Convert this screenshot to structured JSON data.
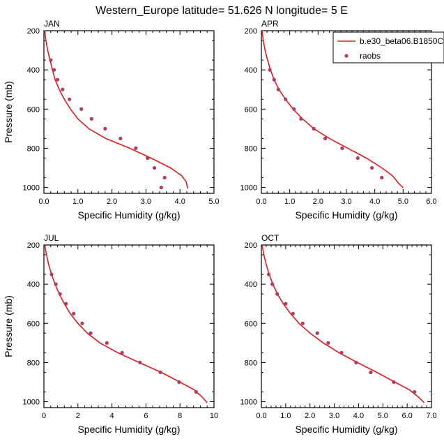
{
  "figure": {
    "title": "Western_Europe  latitude= 51.626 N longitude= 5 E"
  },
  "colors": {
    "model_line": "#e31a1c",
    "obs_marker": "#b03a64",
    "axis": "#000000"
  },
  "legend": {
    "model_label": "b.e30_beta06.B1850C",
    "obs_label": "raobs"
  },
  "chart_data": [
    {
      "type": "line",
      "title": "JAN",
      "xlabel": "Specific Humidity (g/kg)",
      "ylabel": "Pressure (mb)",
      "xlim": [
        0,
        5
      ],
      "xticks": [
        "0.0",
        "1.0",
        "2.0",
        "3.0",
        "4.0",
        "5.0"
      ],
      "ylim": [
        200,
        1030
      ],
      "yticks": [
        "200",
        "400",
        "600",
        "800",
        "1000"
      ],
      "y_reversed": true,
      "series": [
        {
          "name": "b.e30_beta06.B1850C",
          "style": "line",
          "points": [
            [
              0.02,
              200
            ],
            [
              0.06,
              250
            ],
            [
              0.11,
              300
            ],
            [
              0.18,
              350
            ],
            [
              0.25,
              400
            ],
            [
              0.33,
              450
            ],
            [
              0.45,
              500
            ],
            [
              0.6,
              550
            ],
            [
              0.78,
              600
            ],
            [
              1.0,
              650
            ],
            [
              1.32,
              700
            ],
            [
              1.82,
              750
            ],
            [
              2.52,
              800
            ],
            [
              3.15,
              850
            ],
            [
              3.72,
              900
            ],
            [
              4.05,
              940
            ],
            [
              4.18,
              970
            ],
            [
              4.23,
              1005
            ]
          ]
        },
        {
          "name": "raobs",
          "style": "markers",
          "points": [
            [
              0.2,
              350
            ],
            [
              0.3,
              400
            ],
            [
              0.4,
              450
            ],
            [
              0.55,
              500
            ],
            [
              0.75,
              550
            ],
            [
              1.1,
              600
            ],
            [
              1.4,
              650
            ],
            [
              1.8,
              700
            ],
            [
              2.25,
              750
            ],
            [
              2.7,
              800
            ],
            [
              3.05,
              850
            ],
            [
              3.25,
              900
            ],
            [
              3.55,
              950
            ],
            [
              3.45,
              1000
            ]
          ]
        }
      ]
    },
    {
      "type": "line",
      "title": "APR",
      "xlabel": "Specific Humidity (g/kg)",
      "ylabel": "",
      "xlim": [
        0,
        6
      ],
      "xticks": [
        "0.0",
        "1.0",
        "2.0",
        "3.0",
        "4.0",
        "5.0",
        "6.0"
      ],
      "ylim": [
        200,
        1030
      ],
      "yticks": [
        "200",
        "400",
        "600",
        "800",
        "1000"
      ],
      "y_reversed": true,
      "series": [
        {
          "name": "b.e30_beta06.B1850C",
          "style": "line",
          "points": [
            [
              0.02,
              200
            ],
            [
              0.07,
              250
            ],
            [
              0.13,
              300
            ],
            [
              0.22,
              350
            ],
            [
              0.32,
              400
            ],
            [
              0.45,
              450
            ],
            [
              0.62,
              500
            ],
            [
              0.85,
              550
            ],
            [
              1.12,
              600
            ],
            [
              1.45,
              650
            ],
            [
              1.85,
              700
            ],
            [
              2.4,
              750
            ],
            [
              3.05,
              800
            ],
            [
              3.7,
              850
            ],
            [
              4.25,
              900
            ],
            [
              4.62,
              940
            ],
            [
              4.85,
              980
            ],
            [
              5.0,
              1002
            ]
          ]
        },
        {
          "name": "raobs",
          "style": "markers",
          "points": [
            [
              0.3,
              400
            ],
            [
              0.45,
              450
            ],
            [
              0.6,
              500
            ],
            [
              0.85,
              550
            ],
            [
              1.15,
              600
            ],
            [
              1.4,
              650
            ],
            [
              1.85,
              700
            ],
            [
              2.25,
              750
            ],
            [
              2.85,
              800
            ],
            [
              3.4,
              850
            ],
            [
              3.9,
              900
            ],
            [
              4.25,
              950
            ]
          ]
        }
      ]
    },
    {
      "type": "line",
      "title": "JUL",
      "xlabel": "Specific Humidity (g/kg)",
      "ylabel": "Pressure (mb)",
      "xlim": [
        0,
        10
      ],
      "xticks": [
        "0",
        "2",
        "4",
        "6",
        "8",
        "10"
      ],
      "ylim": [
        200,
        1030
      ],
      "yticks": [
        "200",
        "400",
        "600",
        "800",
        "1000"
      ],
      "y_reversed": true,
      "series": [
        {
          "name": "b.e30_beta06.B1850C",
          "style": "line",
          "points": [
            [
              0.05,
              200
            ],
            [
              0.15,
              250
            ],
            [
              0.28,
              300
            ],
            [
              0.45,
              350
            ],
            [
              0.65,
              400
            ],
            [
              0.9,
              450
            ],
            [
              1.2,
              500
            ],
            [
              1.55,
              550
            ],
            [
              2.0,
              600
            ],
            [
              2.55,
              650
            ],
            [
              3.3,
              700
            ],
            [
              4.35,
              750
            ],
            [
              5.6,
              800
            ],
            [
              6.9,
              850
            ],
            [
              8.0,
              900
            ],
            [
              8.85,
              940
            ],
            [
              9.35,
              980
            ],
            [
              9.6,
              1005
            ]
          ]
        },
        {
          "name": "raobs",
          "style": "markers",
          "points": [
            [
              0.45,
              350
            ],
            [
              0.7,
              400
            ],
            [
              0.95,
              450
            ],
            [
              1.3,
              500
            ],
            [
              1.75,
              550
            ],
            [
              2.25,
              600
            ],
            [
              2.75,
              650
            ],
            [
              3.7,
              700
            ],
            [
              4.6,
              750
            ],
            [
              5.65,
              800
            ],
            [
              6.85,
              850
            ],
            [
              7.95,
              900
            ],
            [
              8.95,
              950
            ]
          ]
        }
      ]
    },
    {
      "type": "line",
      "title": "OCT",
      "xlabel": "Specific Humidity (g/kg)",
      "ylabel": "",
      "xlim": [
        0,
        7
      ],
      "xticks": [
        "0.0",
        "1.0",
        "2.0",
        "3.0",
        "4.0",
        "5.0",
        "6.0",
        "7.0"
      ],
      "ylim": [
        200,
        1030
      ],
      "yticks": [
        "200",
        "400",
        "600",
        "800",
        "1000"
      ],
      "y_reversed": true,
      "series": [
        {
          "name": "b.e30_beta06.B1850C",
          "style": "line",
          "points": [
            [
              0.03,
              200
            ],
            [
              0.1,
              250
            ],
            [
              0.2,
              300
            ],
            [
              0.32,
              350
            ],
            [
              0.47,
              400
            ],
            [
              0.66,
              450
            ],
            [
              0.9,
              500
            ],
            [
              1.2,
              550
            ],
            [
              1.55,
              600
            ],
            [
              2.0,
              650
            ],
            [
              2.55,
              700
            ],
            [
              3.2,
              750
            ],
            [
              3.95,
              800
            ],
            [
              4.75,
              850
            ],
            [
              5.5,
              900
            ],
            [
              6.1,
              940
            ],
            [
              6.5,
              980
            ],
            [
              6.7,
              1005
            ]
          ]
        },
        {
          "name": "raobs",
          "style": "markers",
          "points": [
            [
              0.3,
              350
            ],
            [
              0.45,
              400
            ],
            [
              0.65,
              450
            ],
            [
              1.0,
              500
            ],
            [
              1.3,
              550
            ],
            [
              1.7,
              600
            ],
            [
              2.3,
              650
            ],
            [
              2.75,
              700
            ],
            [
              3.3,
              750
            ],
            [
              3.9,
              800
            ],
            [
              4.5,
              850
            ],
            [
              5.45,
              900
            ],
            [
              6.3,
              950
            ]
          ]
        }
      ]
    }
  ]
}
